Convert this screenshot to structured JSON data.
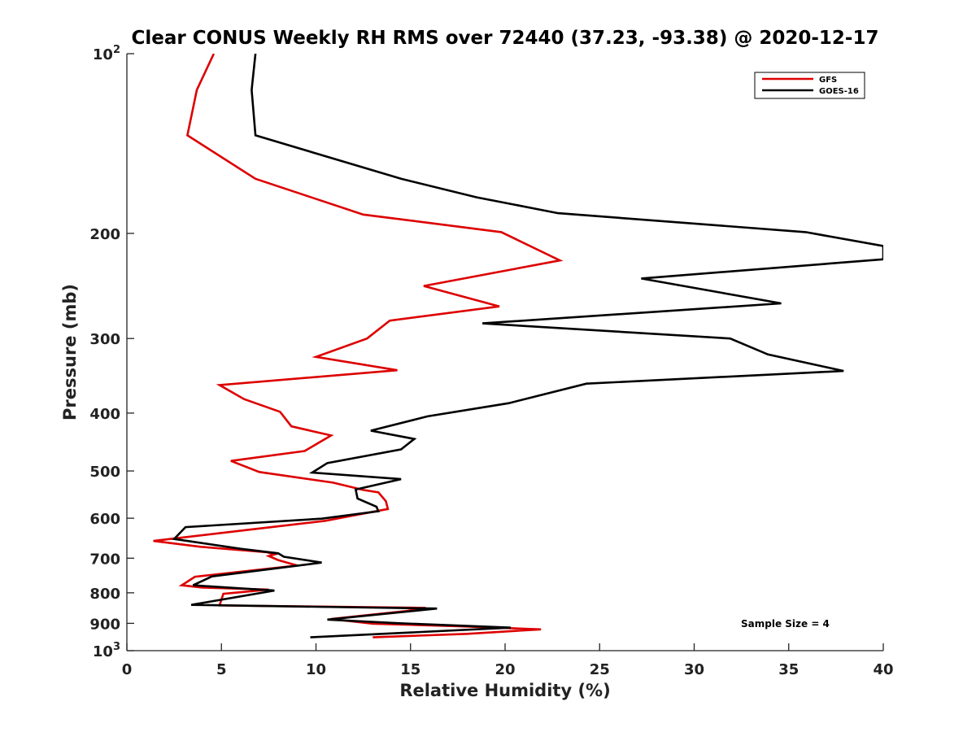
{
  "chart_data": {
    "type": "line",
    "title": "Clear CONUS Weekly RH RMS over 72440 (37.23, -93.38) @ 2020-12-17",
    "xlabel": "Relative Humidity (%)",
    "ylabel": "Pressure (mb)",
    "xlim": [
      0,
      40
    ],
    "ylim": [
      100,
      1000
    ],
    "y_scale": "log",
    "y_reversed": true,
    "x_ticks": [
      0,
      5,
      10,
      15,
      20,
      25,
      30,
      35,
      40
    ],
    "y_ticks": [
      {
        "value": 100,
        "base": "10",
        "exp": "2"
      },
      {
        "value": 200,
        "label": "200"
      },
      {
        "value": 300,
        "label": "300"
      },
      {
        "value": 400,
        "label": "400"
      },
      {
        "value": 500,
        "label": "500"
      },
      {
        "value": 600,
        "label": "600"
      },
      {
        "value": 700,
        "label": "700"
      },
      {
        "value": 800,
        "label": "800"
      },
      {
        "value": 900,
        "label": "900"
      },
      {
        "value": 1000,
        "base": "10",
        "exp": "3"
      }
    ],
    "grid": false,
    "legend_position": "top-right",
    "annotation": "Sample Size = 4",
    "series": [
      {
        "name": "GFS",
        "color": "#dd0000",
        "points": [
          [
            4.6,
            100
          ],
          [
            3.7,
            115
          ],
          [
            3.2,
            137
          ],
          [
            6.8,
            162
          ],
          [
            9.5,
            173
          ],
          [
            12.5,
            186
          ],
          [
            19.8,
            199
          ],
          [
            22.9,
            222
          ],
          [
            15.7,
            245
          ],
          [
            19.7,
            265
          ],
          [
            13.9,
            280
          ],
          [
            12.7,
            300
          ],
          [
            10.0,
            322
          ],
          [
            14.3,
            339
          ],
          [
            4.9,
            359
          ],
          [
            6.2,
            379
          ],
          [
            8.1,
            398
          ],
          [
            8.7,
            421
          ],
          [
            10.8,
            436
          ],
          [
            9.4,
            463
          ],
          [
            5.5,
            481
          ],
          [
            7.0,
            502
          ],
          [
            10.9,
            523
          ],
          [
            12.5,
            538
          ],
          [
            13.3,
            543
          ],
          [
            13.7,
            562
          ],
          [
            13.8,
            579
          ],
          [
            10.5,
            606
          ],
          [
            6.5,
            627
          ],
          [
            1.4,
            655
          ],
          [
            3.9,
            670
          ],
          [
            7.4,
            684
          ],
          [
            7.8,
            690
          ],
          [
            7.5,
            694
          ],
          [
            8.0,
            705
          ],
          [
            9.0,
            720
          ],
          [
            3.6,
            752
          ],
          [
            2.9,
            777
          ],
          [
            4.0,
            784
          ],
          [
            7.5,
            790
          ],
          [
            5.1,
            803
          ],
          [
            4.9,
            840
          ],
          [
            15.8,
            848
          ],
          [
            14.8,
            858
          ],
          [
            10.8,
            885
          ],
          [
            13.0,
            901
          ],
          [
            17.5,
            910
          ],
          [
            21.9,
            921
          ],
          [
            18.0,
            937
          ],
          [
            13.0,
            950
          ]
        ]
      },
      {
        "name": "GOES-16",
        "color": "#000000",
        "points": [
          [
            6.8,
            100
          ],
          [
            6.6,
            115
          ],
          [
            6.8,
            137
          ],
          [
            14.5,
            162
          ],
          [
            18.5,
            174
          ],
          [
            22.8,
            185
          ],
          [
            35.9,
            199
          ],
          [
            40.0,
            210
          ],
          [
            40.0,
            221
          ],
          [
            27.2,
            238
          ],
          [
            34.6,
            262
          ],
          [
            18.8,
            283
          ],
          [
            31.9,
            300
          ],
          [
            33.9,
            319
          ],
          [
            37.9,
            340
          ],
          [
            24.3,
            357
          ],
          [
            20.2,
            385
          ],
          [
            15.9,
            405
          ],
          [
            12.9,
            428
          ],
          [
            15.2,
            442
          ],
          [
            14.5,
            460
          ],
          [
            10.6,
            485
          ],
          [
            9.8,
            503
          ],
          [
            14.5,
            516
          ],
          [
            12.1,
            537
          ],
          [
            12.2,
            556
          ],
          [
            13.2,
            574
          ],
          [
            13.3,
            584
          ],
          [
            10.3,
            601
          ],
          [
            3.1,
            621
          ],
          [
            2.5,
            650
          ],
          [
            6.0,
            675
          ],
          [
            8.0,
            687
          ],
          [
            8.3,
            696
          ],
          [
            10.3,
            712
          ],
          [
            4.5,
            751
          ],
          [
            3.5,
            777
          ],
          [
            7.8,
            793
          ],
          [
            3.4,
            838
          ],
          [
            16.4,
            850
          ],
          [
            10.6,
            887
          ],
          [
            14.2,
            899
          ],
          [
            20.3,
            915
          ],
          [
            9.7,
            950
          ]
        ]
      }
    ]
  }
}
